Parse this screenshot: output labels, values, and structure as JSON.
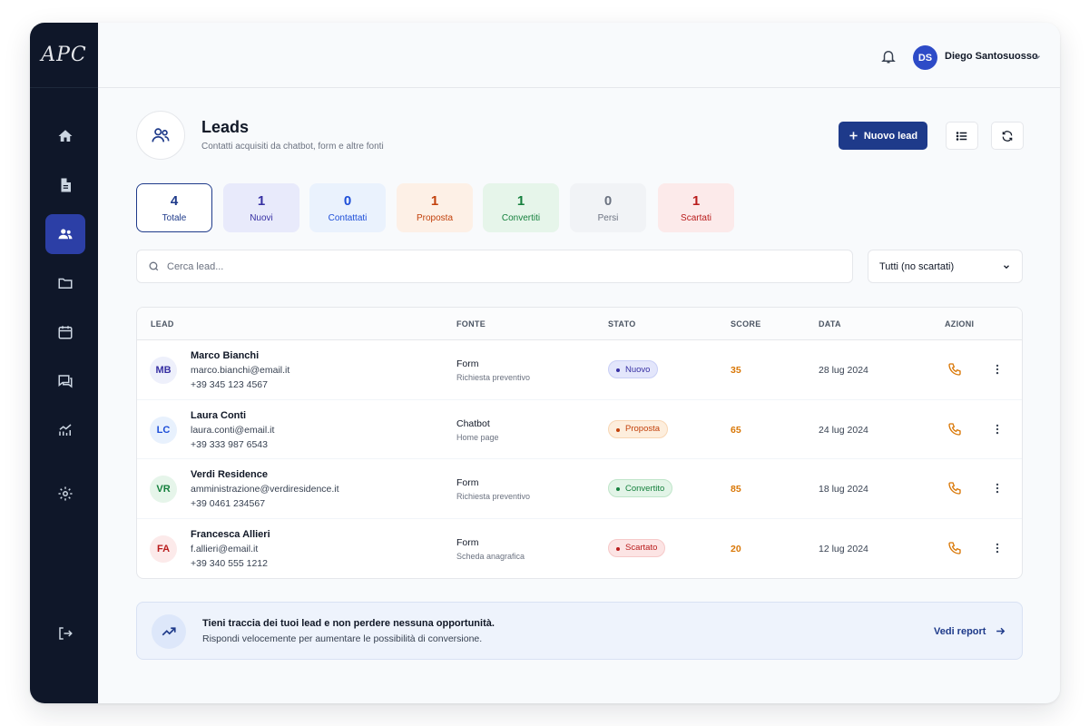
{
  "app": {
    "logo": "APC"
  },
  "sidebar": {
    "items": [
      {
        "icon": "home-icon"
      },
      {
        "icon": "document-icon"
      },
      {
        "icon": "users-icon",
        "active": true
      },
      {
        "icon": "folder-icon"
      },
      {
        "icon": "calendar-icon"
      },
      {
        "icon": "chat-icon"
      },
      {
        "icon": "analytics-icon"
      },
      {
        "icon": "gear-icon"
      },
      {
        "icon": "logout-icon"
      }
    ]
  },
  "header": {
    "user_initials": "DS",
    "user_name": "Diego Santosuosso"
  },
  "page": {
    "title": "Leads",
    "subtitle": "Contatti acquisiti da chatbot, form e altre fonti",
    "new_button": "Nuovo lead"
  },
  "stats": [
    {
      "value": "4",
      "label": "Totale",
      "color": "#1e3a8a"
    },
    {
      "value": "1",
      "label": "Nuovi",
      "color": "#3730a3"
    },
    {
      "value": "0",
      "label": "Contattati",
      "color": "#1d4ed8"
    },
    {
      "value": "1",
      "label": "Proposta",
      "color": "#c2410c"
    },
    {
      "value": "1",
      "label": "Convertiti",
      "color": "#15803d"
    },
    {
      "value": "0",
      "label": "Persi",
      "color": "#6b7280"
    },
    {
      "value": "1",
      "label": "Scartati",
      "color": "#b91c1c"
    }
  ],
  "search": {
    "placeholder": "Cerca lead...",
    "filter_value": "Tutti (no scartati)"
  },
  "table": {
    "headers": {
      "lead": "LEAD",
      "source": "FONTE",
      "status": "STATO",
      "score": "SCORE",
      "date": "DATA",
      "actions": "AZIONI"
    },
    "rows": [
      {
        "initials": "MB",
        "name": "Marco Bianchi",
        "email": "marco.bianchi@email.it",
        "phone": "+39 345 123 4567",
        "source": "Form",
        "source_detail": "Richiesta preventivo",
        "status": "Nuovo",
        "score": "35",
        "date": "28 lug 2024"
      },
      {
        "initials": "LC",
        "name": "Laura Conti",
        "email": "laura.conti@email.it",
        "phone": "+39 333 987 6543",
        "source": "Chatbot",
        "source_detail": "Home page",
        "status": "Proposta",
        "score": "65",
        "date": "24 lug 2024"
      },
      {
        "initials": "VR",
        "name": "Verdi Residence",
        "email": "amministrazione@verdiresidence.it",
        "phone": "+39 0461 234567",
        "source": "Form",
        "source_detail": "Richiesta preventivo",
        "status": "Convertito",
        "score": "85",
        "date": "18 lug 2024"
      },
      {
        "initials": "FA",
        "name": "Francesca Allieri",
        "email": "f.allieri@email.it",
        "phone": "+39 340 555 1212",
        "source": "Form",
        "source_detail": "Scheda anagrafica",
        "status": "Scartato",
        "score": "20",
        "date": "12 lug 2024"
      }
    ]
  },
  "banner": {
    "title": "Tieni traccia dei tuoi lead e non perdere nessuna opportunità.",
    "subtitle": "Rispondi velocemente per aumentare le possibilità di conversione.",
    "link": "Vedi report"
  }
}
